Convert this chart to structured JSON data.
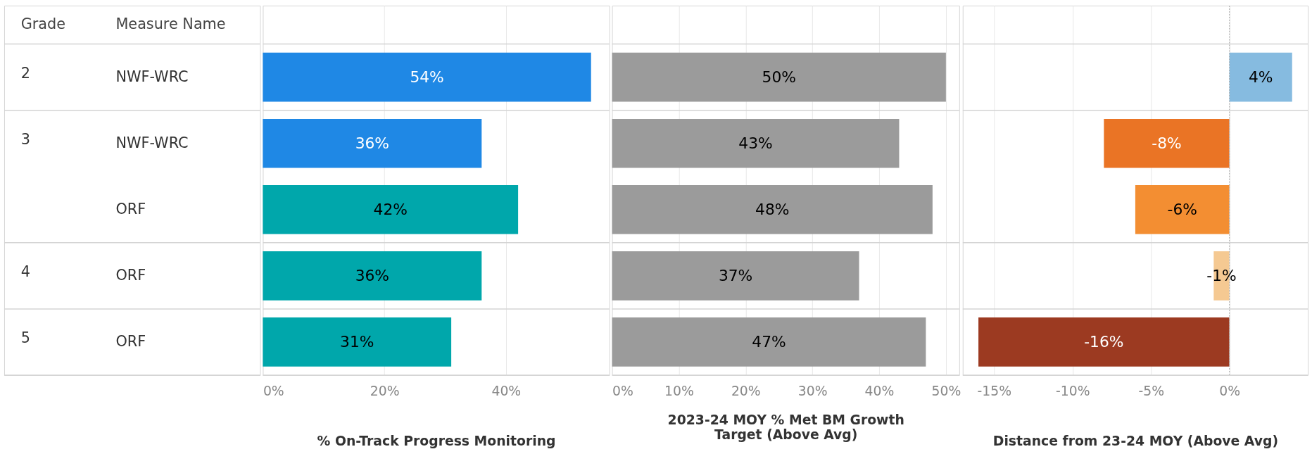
{
  "chart_data": [
    {
      "type": "bar",
      "orientation": "horizontal",
      "xlabel": "% On-Track Progress Monitoring",
      "categories": [
        "NWF-WRC",
        "NWF-WRC",
        "ORF",
        "ORF",
        "ORF"
      ],
      "annotations": [
        "Grade",
        "Measure Name",
        "2",
        "3",
        "4",
        "5"
      ],
      "values": [
        54,
        36,
        42,
        36,
        31
      ],
      "value_labels": [
        "54%",
        "36%",
        "42%",
        "36%",
        "31%"
      ],
      "colors": [
        "#1f88e5",
        "#1f88e5",
        "#00a7ab",
        "#00a7ab",
        "#00a7ab"
      ],
      "xlim": [
        0,
        57
      ],
      "xticks": [
        {
          "value": 0,
          "label": "0%"
        },
        {
          "value": 20,
          "label": "20%"
        },
        {
          "value": 40,
          "label": "40%"
        }
      ],
      "grid": "x"
    },
    {
      "type": "bar",
      "orientation": "horizontal",
      "xlabel": "2023-24 MOY % Met BM Growth Target (Above Avg)",
      "values": [
        50,
        43,
        48,
        37,
        47
      ],
      "value_labels": [
        "50%",
        "43%",
        "48%",
        "37%",
        "47%"
      ],
      "colors": [
        "#9b9b9b",
        "#9b9b9b",
        "#9b9b9b",
        "#9b9b9b",
        "#9b9b9b"
      ],
      "xlim": [
        0,
        52
      ],
      "xticks": [
        {
          "value": 0,
          "label": "0%"
        },
        {
          "value": 10,
          "label": "10%"
        },
        {
          "value": 20,
          "label": "20%"
        },
        {
          "value": 30,
          "label": "30%"
        },
        {
          "value": 40,
          "label": "40%"
        },
        {
          "value": 50,
          "label": "50%"
        }
      ],
      "grid": "x",
      "tick_labels": "x"
    },
    {
      "type": "bar",
      "orientation": "horizontal",
      "xlabel": "Distance from 23-24 MOY (Above Avg)",
      "values": [
        4,
        -8,
        -6,
        -1,
        -16
      ],
      "value_labels": [
        "4%",
        "-8%",
        "-6%",
        "-1%",
        "-16%"
      ],
      "colors": [
        "#86bbe0",
        "#ea7425",
        "#f38e32",
        "#f5c992",
        "#9c3a21"
      ],
      "xlim": [
        -17,
        5
      ],
      "xticks": [
        {
          "value": -15,
          "label": "-15%"
        },
        {
          "value": -10,
          "label": "-10%"
        },
        {
          "value": -5,
          "label": "-5%"
        },
        {
          "value": 0,
          "label": "0%"
        }
      ],
      "grid": "x",
      "tick_labels": "x",
      "ref_lines": [
        {
          "axis": "x",
          "value": 0,
          "line_style": "dotted",
          "color": "#aaaaaa"
        }
      ]
    }
  ]
}
